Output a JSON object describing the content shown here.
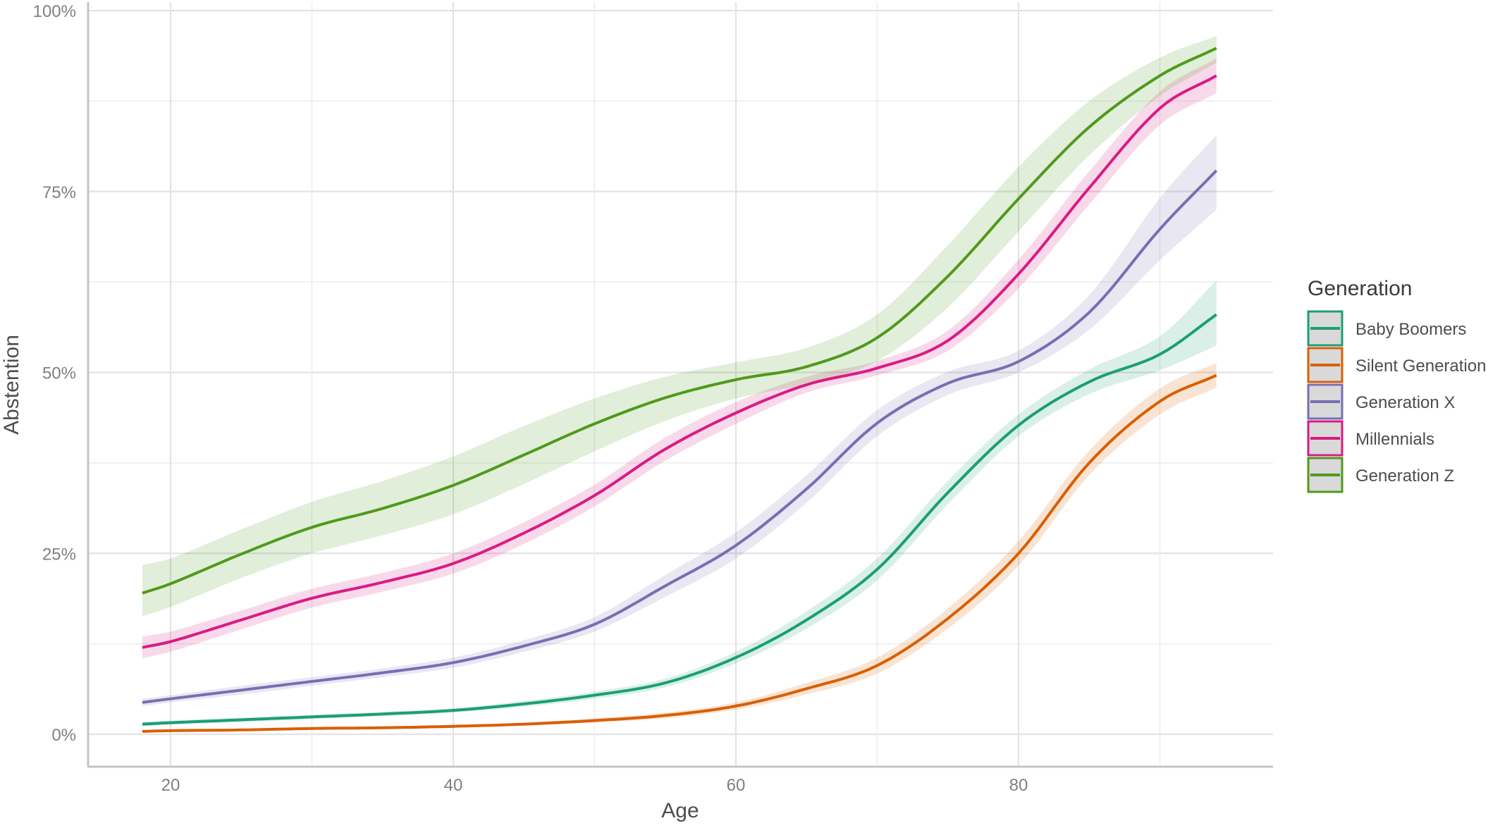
{
  "chart_data": {
    "type": "line",
    "title": "",
    "xlabel": "Age",
    "ylabel": "Abstention",
    "xlim": [
      14,
      100
    ],
    "ylim": [
      -5,
      100
    ],
    "x_ticks": [
      20,
      40,
      60,
      80
    ],
    "x_tick_labels": [
      "20",
      "40",
      "60",
      "80"
    ],
    "y_ticks": [
      0,
      25,
      50,
      75,
      100
    ],
    "y_tick_labels": [
      "0%",
      "25%",
      "50%",
      "75%",
      "100%"
    ],
    "grid": true,
    "legend": {
      "title": "Generation",
      "position": "right",
      "entries": [
        "Baby Boomers",
        "Silent Generation",
        "Generation X",
        "Millennials",
        "Generation Z"
      ]
    },
    "x": [
      18,
      20,
      25,
      30,
      35,
      40,
      45,
      50,
      55,
      60,
      65,
      70,
      75,
      80,
      85,
      90,
      94
    ],
    "series": [
      {
        "name": "Baby Boomers",
        "color": "#1b9e77",
        "values": [
          1.4,
          1.6,
          2.0,
          2.4,
          2.8,
          3.3,
          4.2,
          5.4,
          7.1,
          10.6,
          15.8,
          22.8,
          33.4,
          42.7,
          48.7,
          52.5,
          58.0
        ],
        "ci_lower": [
          1.1,
          1.3,
          1.7,
          2.1,
          2.5,
          3.0,
          3.8,
          4.9,
          6.5,
          9.8,
          14.6,
          21.3,
          31.8,
          41.2,
          47.0,
          50.3,
          53.7
        ],
        "ci_upper": [
          1.7,
          1.9,
          2.3,
          2.7,
          3.1,
          3.6,
          4.6,
          5.9,
          7.7,
          11.4,
          17.0,
          24.3,
          35.0,
          44.2,
          50.4,
          55.0,
          62.7
        ]
      },
      {
        "name": "Silent Generation",
        "color": "#d95f02",
        "values": [
          0.4,
          0.5,
          0.6,
          0.8,
          0.9,
          1.1,
          1.4,
          1.9,
          2.6,
          3.9,
          6.3,
          9.5,
          16.0,
          25.0,
          37.5,
          46.0,
          49.6
        ],
        "ci_lower": [
          0.3,
          0.4,
          0.5,
          0.6,
          0.7,
          0.9,
          1.2,
          1.6,
          2.2,
          3.4,
          5.5,
          8.4,
          14.6,
          23.3,
          35.8,
          44.2,
          47.9
        ],
        "ci_upper": [
          0.5,
          0.6,
          0.7,
          1.0,
          1.1,
          1.3,
          1.6,
          2.2,
          3.0,
          4.4,
          7.1,
          10.6,
          17.4,
          26.7,
          39.2,
          47.8,
          51.3
        ]
      },
      {
        "name": "Generation X",
        "color": "#7570b3",
        "values": [
          4.4,
          4.9,
          6.1,
          7.3,
          8.5,
          9.9,
          12.2,
          15.2,
          20.5,
          26.1,
          33.9,
          43.0,
          48.5,
          51.5,
          58.3,
          69.8,
          77.9
        ],
        "ci_lower": [
          3.9,
          4.4,
          5.5,
          6.7,
          7.9,
          9.2,
          11.4,
          14.2,
          19.0,
          24.3,
          32.0,
          41.2,
          46.9,
          50.0,
          55.9,
          65.5,
          72.5
        ],
        "ci_upper": [
          4.9,
          5.4,
          6.7,
          7.9,
          9.1,
          10.6,
          13.0,
          16.2,
          22.0,
          27.9,
          35.8,
          44.8,
          50.1,
          53.0,
          60.7,
          74.1,
          82.8
        ]
      },
      {
        "name": "Millennials",
        "color": "#d81b84",
        "values": [
          12.0,
          12.8,
          15.8,
          18.8,
          21.0,
          23.6,
          27.8,
          33.0,
          39.4,
          44.4,
          48.3,
          50.6,
          54.4,
          63.6,
          75.5,
          86.5,
          91.0
        ],
        "ci_lower": [
          10.5,
          11.4,
          14.5,
          17.5,
          19.7,
          22.2,
          26.3,
          31.5,
          37.8,
          42.9,
          47.2,
          49.6,
          53.0,
          61.6,
          73.2,
          84.2,
          88.6
        ],
        "ci_upper": [
          13.5,
          14.2,
          17.1,
          20.1,
          22.3,
          25.0,
          29.3,
          34.5,
          41.0,
          45.9,
          49.4,
          51.6,
          55.8,
          65.6,
          77.8,
          88.8,
          93.4
        ]
      },
      {
        "name": "Generation Z",
        "color": "#4f9a1c",
        "values": [
          19.5,
          20.8,
          24.9,
          28.6,
          31.2,
          34.4,
          38.6,
          42.9,
          46.5,
          49.0,
          50.8,
          54.8,
          63.3,
          74.0,
          83.9,
          91.0,
          94.8
        ],
        "ci_lower": [
          16.3,
          17.6,
          21.6,
          25.0,
          27.5,
          30.4,
          34.6,
          39.1,
          43.3,
          46.4,
          48.4,
          51.6,
          59.0,
          69.5,
          80.0,
          88.2,
          92.8
        ],
        "ci_upper": [
          23.4,
          24.3,
          28.3,
          32.1,
          35.0,
          38.4,
          42.6,
          46.4,
          49.4,
          51.4,
          53.4,
          58.0,
          67.6,
          78.4,
          87.5,
          93.5,
          96.5
        ]
      }
    ]
  }
}
